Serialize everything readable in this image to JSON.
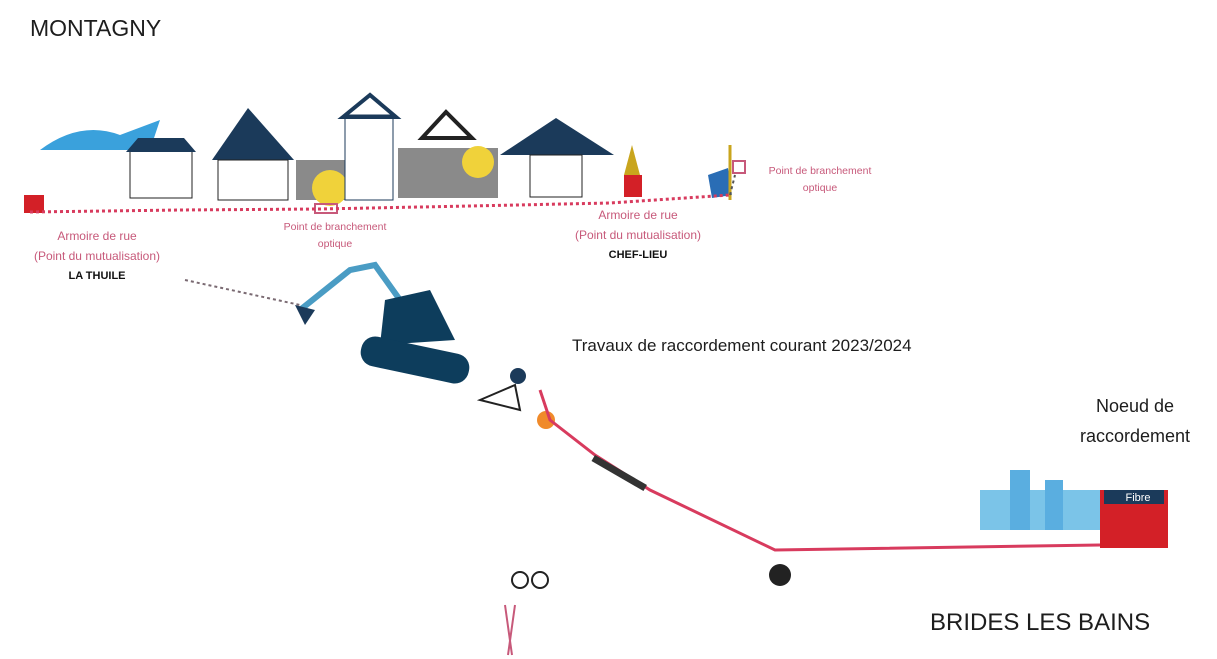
{
  "title_top": "MONTAGNY",
  "title_bottom": "BRIDES LES BAINS",
  "cabinets": [
    {
      "lines": [
        "Armoire de rue",
        "(Point du mutualisation)"
      ],
      "place": "LA THUILE"
    },
    {
      "lines": [
        "Armoire de rue",
        "(Point du mutualisation)"
      ],
      "place": "CHEF-LIEU"
    }
  ],
  "connection_points": [
    {
      "lines": [
        "Point de branchement",
        "optique"
      ]
    },
    {
      "lines": [
        "Point de branchement",
        "optique"
      ]
    }
  ],
  "works": "Travaux de raccordement courant 2023/2024",
  "node": {
    "lines": [
      "Noeud de",
      "raccordement"
    ],
    "sign": "Fibre"
  }
}
